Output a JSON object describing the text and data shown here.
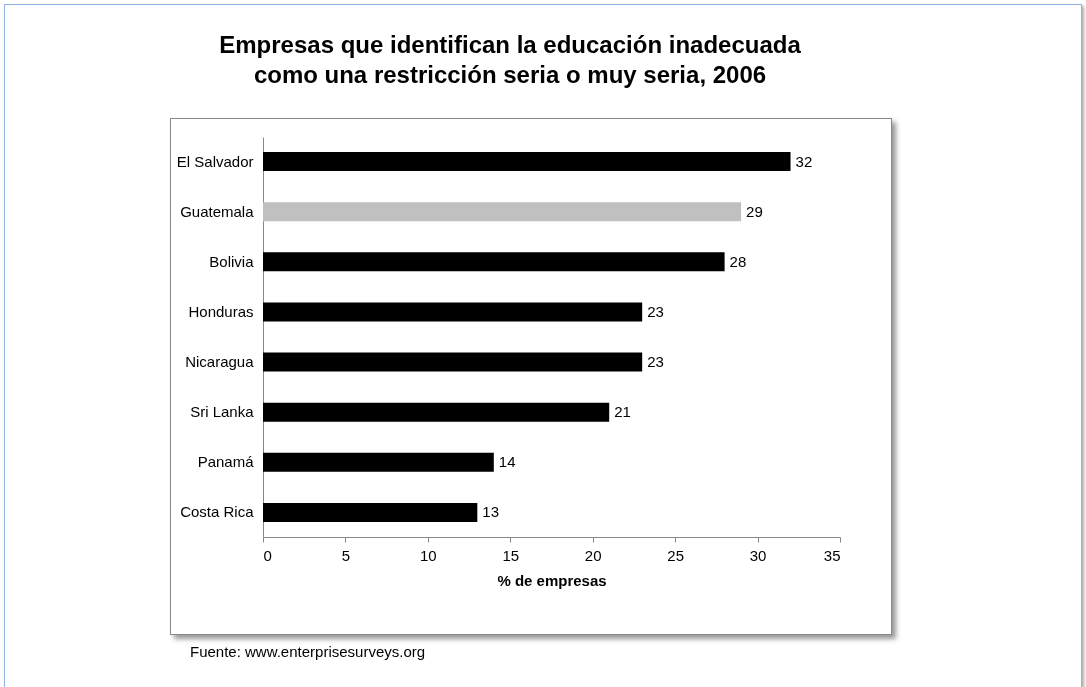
{
  "chart_data": {
    "type": "bar",
    "orientation": "horizontal",
    "title": "Empresas que identifican la educación inadecuada como una restricción seria o muy seria, 2006",
    "xlabel": "% de empresas",
    "categories": [
      "El Salvador",
      "Guatemala",
      "Bolivia",
      "Honduras",
      "Nicaragua",
      "Sri Lanka",
      "Panamá",
      "Costa Rica"
    ],
    "values": [
      32,
      29,
      28,
      23,
      23,
      21,
      14,
      13
    ],
    "colors": [
      "#000000",
      "#c0c0c0",
      "#000000",
      "#000000",
      "#000000",
      "#000000",
      "#000000",
      "#000000"
    ],
    "xlim": [
      0,
      35
    ],
    "xticks": [
      0,
      5,
      10,
      15,
      20,
      25,
      30,
      35
    ],
    "data_labels": true,
    "grid": false,
    "annotations": [
      "Fuente: www.enterprisesurveys.org"
    ]
  }
}
